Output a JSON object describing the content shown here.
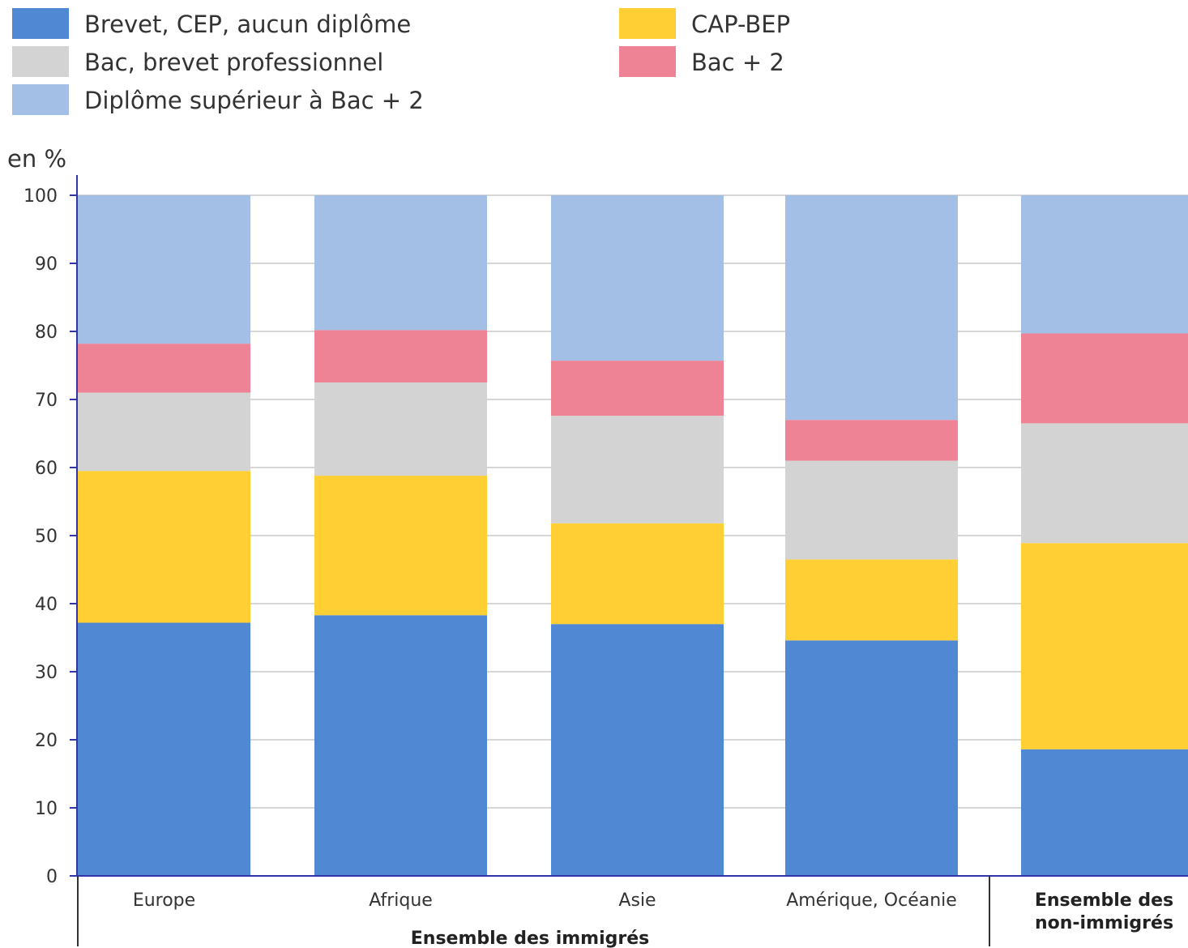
{
  "chart_data": {
    "type": "bar",
    "stacked": true,
    "ylabel": "en %",
    "ylim": [
      0,
      100
    ],
    "yticks": [
      0,
      10,
      20,
      30,
      40,
      50,
      60,
      70,
      80,
      90,
      100
    ],
    "grid": true,
    "legend_position": "top",
    "categories": [
      "Europe",
      "Afrique",
      "Asie",
      "Amérique, Océanie",
      "Ensemble des non-immigrés"
    ],
    "category_groups": [
      {
        "label": "Ensemble des immigrés",
        "categories": [
          "Europe",
          "Afrique",
          "Asie",
          "Amérique, Océanie"
        ]
      },
      {
        "label": "",
        "categories": [
          "Ensemble des non-immigrés"
        ]
      }
    ],
    "series": [
      {
        "name": "Brevet, CEP, aucun diplôme",
        "color": "#5088d3",
        "values": [
          37.2,
          38.3,
          37.0,
          34.6,
          18.6
        ]
      },
      {
        "name": "CAP-BEP",
        "color": "#ffcf33",
        "values": [
          22.3,
          20.5,
          14.8,
          11.9,
          30.3
        ]
      },
      {
        "name": "Bac, brevet professionnel",
        "color": "#d3d3d3",
        "values": [
          11.5,
          13.7,
          15.8,
          14.5,
          17.6
        ]
      },
      {
        "name": "Bac + 2",
        "color": "#ef8396",
        "values": [
          7.2,
          7.7,
          8.1,
          6.0,
          13.2
        ]
      },
      {
        "name": "Diplôme supérieur à Bac + 2",
        "color": "#a4bfe6",
        "values": [
          21.8,
          19.8,
          24.3,
          33.0,
          20.3
        ]
      }
    ],
    "legend_order": [
      "Brevet, CEP, aucun diplôme",
      "Bac, brevet professionnel",
      "Diplôme supérieur à Bac + 2",
      "CAP-BEP",
      "Bac + 2"
    ]
  }
}
